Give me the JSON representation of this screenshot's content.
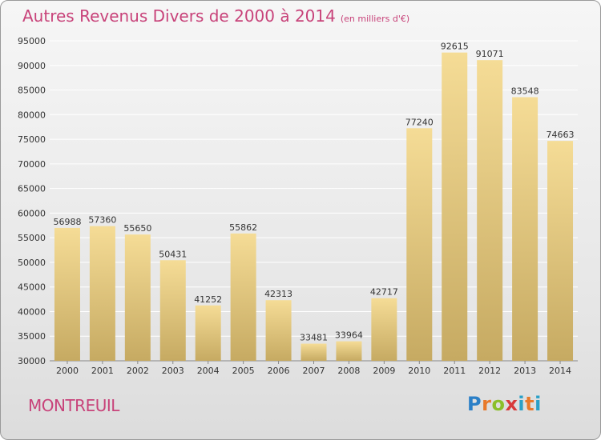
{
  "header": {
    "title": "Autres Revenus Divers de 2000 à 2014",
    "unit": "(en milliers d'€)"
  },
  "footer": {
    "city": "MONTREUIL",
    "logo": "Proxiti"
  },
  "colors": {
    "title": "#c8437a",
    "bar_light": "#f5dc96",
    "bar_dark": "#c6aa62",
    "grid": "#ffffff"
  },
  "chart_data": {
    "type": "bar",
    "title": "Autres Revenus Divers de 2000 à 2014",
    "subtitle": "(en milliers d'€)",
    "xlabel": "",
    "ylabel": "",
    "categories": [
      "2000",
      "2001",
      "2002",
      "2003",
      "2004",
      "2005",
      "2006",
      "2007",
      "2008",
      "2009",
      "2010",
      "2011",
      "2012",
      "2013",
      "2014"
    ],
    "values": [
      56988,
      57360,
      55650,
      50431,
      41252,
      55862,
      42313,
      33481,
      33964,
      42717,
      77240,
      92615,
      91071,
      83548,
      74663
    ],
    "ylim": [
      30000,
      95000
    ],
    "yticks": [
      30000,
      35000,
      40000,
      45000,
      50000,
      55000,
      60000,
      65000,
      70000,
      75000,
      80000,
      85000,
      90000,
      95000
    ],
    "grid": true,
    "legend": "none"
  }
}
